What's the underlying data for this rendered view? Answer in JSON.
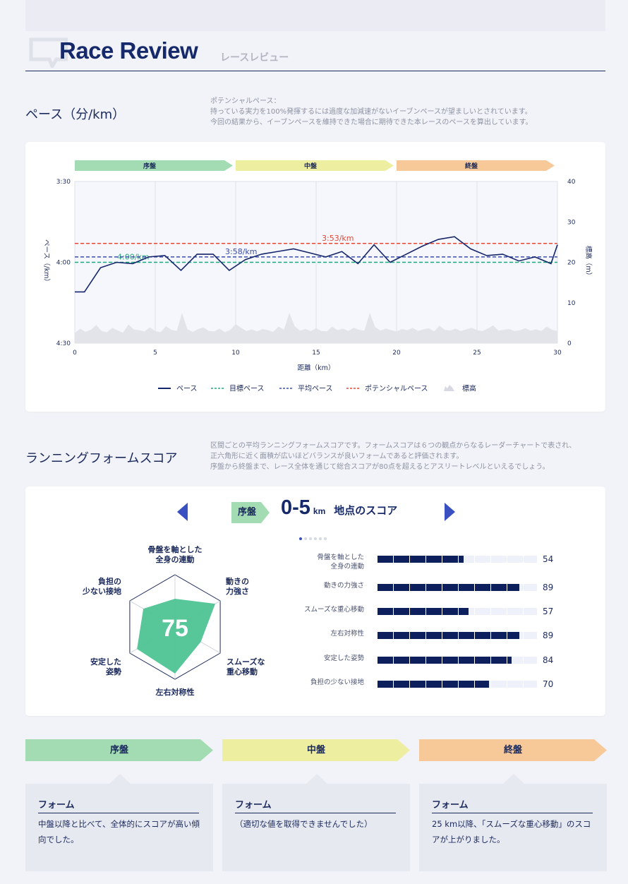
{
  "header": {
    "title": "Race Review",
    "subtitle": "レースレビュー",
    "icon": "speech-bubble-icon"
  },
  "pace_section": {
    "title": "ペース（分/km）",
    "desc": [
      "ポテンシャルペース：",
      "持っている実力を100%発揮するには過度な加減速がないイーブンペースが望ましいとされています。",
      "今回の結果から、イーブンペースを維持できた場合に期待できた本レースのペースを算出しています。"
    ]
  },
  "chart_data": {
    "type": "line",
    "x_label": "距離（km）",
    "y_label": "ペース（/km）",
    "y2_label": "標高（m）",
    "x_range": [
      0,
      30
    ],
    "x_ticks": [
      "0",
      "5",
      "10",
      "15",
      "20",
      "25",
      "30"
    ],
    "y_range_sec": [
      210,
      270
    ],
    "y_ticks": [
      "3:30",
      "4:00",
      "4:30"
    ],
    "y2_range": [
      0,
      40
    ],
    "y2_ticks": [
      "0",
      "10",
      "20",
      "30",
      "40"
    ],
    "phases": [
      {
        "label": "序盤",
        "from": 0,
        "to": 10,
        "color": "#a3dcb2"
      },
      {
        "label": "中盤",
        "from": 10,
        "to": 20,
        "color": "#eeeea0"
      },
      {
        "label": "終盤",
        "from": 20,
        "to": 30,
        "color": "#f7c898"
      }
    ],
    "reference_lines": [
      {
        "name": "目標ペース",
        "value_sec": 240,
        "label": "4:00/km",
        "color": "#23a879"
      },
      {
        "name": "平均ペース",
        "value_sec": 238,
        "label": "3:58/km",
        "color": "#3d4fa8"
      },
      {
        "name": "ポテンシャルペース",
        "value_sec": 233,
        "label": "3:53/km",
        "color": "#e24a36"
      }
    ],
    "series": [
      {
        "name": "ペース",
        "color": "#16266b",
        "x": [
          0,
          0.6,
          1.6,
          2.6,
          3.6,
          4.6,
          5.6,
          6.6,
          7.6,
          8.6,
          9.6,
          10.6,
          11.6,
          12.6,
          13.6,
          14.6,
          15.6,
          16.6,
          17.6,
          18.6,
          19.6,
          20.6,
          21.6,
          22.6,
          23.6,
          24.6,
          25.6,
          26.6,
          27.6,
          28.6,
          29.6,
          30
        ],
        "y_sec": [
          251,
          251,
          242,
          240,
          240.5,
          238,
          237.5,
          243,
          237,
          237,
          243,
          239,
          237,
          236,
          235,
          236.5,
          238,
          236,
          240.5,
          233.5,
          240,
          237,
          234,
          231.5,
          230.5,
          235,
          237.5,
          237,
          239.5,
          238,
          240.5,
          233.5
        ]
      }
    ],
    "elevation": {
      "name": "標高",
      "color": "#e2e4ea",
      "values": [
        2.5,
        3.6,
        2.8,
        3.3,
        4.5,
        3.0,
        2.7,
        3.8,
        3.1,
        2.6,
        4.6,
        3.4,
        3.2,
        2.9,
        3.9,
        3.0,
        2.7,
        4.2,
        3.3,
        3.0,
        7.5,
        3.4,
        2.8,
        3.5,
        3.9,
        3.0,
        2.9,
        3.6,
        2.7,
        3.3,
        4.7,
        3.8,
        3.0,
        3.4,
        2.9,
        3.5,
        3.2,
        2.8,
        4.1,
        3.3,
        7.5,
        4.2,
        3.1,
        3.5,
        3.0,
        3.7,
        3.0,
        2.9,
        4.1,
        3.2,
        3.6,
        3.0,
        3.8,
        3.3,
        3.1,
        7.5,
        4.0,
        3.1,
        3.6,
        3.2,
        2.9,
        3.5,
        3.2,
        3.8,
        3.0,
        3.4,
        3.7,
        2.9,
        4.3,
        3.3,
        3.1,
        3.6,
        3.0,
        3.4,
        3.8,
        3.2,
        3.0,
        3.6,
        4.4,
        3.1,
        3.3,
        3.5,
        3.0,
        3.2,
        3.7,
        3.1,
        3.4,
        3.0,
        4.1,
        3.3,
        3.0
      ]
    },
    "legend": [
      "ペース",
      "目標ペース",
      "平均ペース",
      "ポテンシャルペース",
      "標高"
    ]
  },
  "form_section": {
    "title": "ランニングフォームスコア",
    "desc": [
      "区間ごとの平均ランニングフォームスコアです。フォームスコアは６つの観点からなるレーダーチャートで表され、",
      "正六角形に近く面積が広いほどバランスが良いフォームであると評価されます。",
      "序盤から終盤まで、レース全体を通じて総合スコアが80点を超えるとアスリートレベルといえるでしょう。"
    ]
  },
  "score_card": {
    "phase": "序盤",
    "range": "0-5",
    "unit": "km",
    "label": "地点のスコア",
    "total": "75",
    "radar_labels": [
      [
        "骨盤を軸とした",
        "全身の連動"
      ],
      [
        "動きの",
        "力強さ"
      ],
      [
        "スムーズな",
        "重心移動"
      ],
      [
        "左右対称性"
      ],
      [
        "安定した",
        "姿勢"
      ],
      [
        "負担の",
        "少ない接地"
      ]
    ],
    "metrics": [
      {
        "name": [
          "骨盤を軸とした",
          "全身の連動"
        ],
        "value": 54
      },
      {
        "name": [
          "動きの力強さ"
        ],
        "value": 89
      },
      {
        "name": [
          "スムーズな重心移動"
        ],
        "value": 57
      },
      {
        "name": [
          "左右対称性"
        ],
        "value": 89
      },
      {
        "name": [
          "安定した姿勢"
        ],
        "value": 84
      },
      {
        "name": [
          "負担の少ない接地"
        ],
        "value": 70
      }
    ],
    "radar_fill": "#4ec394",
    "bar_color": "#0e1f5e"
  },
  "phases": [
    {
      "label": "序盤",
      "title": "フォーム",
      "text": "中盤以降と比べて、全体的にスコアが高い傾向でした。",
      "color": "#a3dcb2"
    },
    {
      "label": "中盤",
      "title": "フォーム",
      "text": "（適切な値を取得できませんでした）",
      "color": "#eeeea0"
    },
    {
      "label": "終盤",
      "title": "フォーム",
      "text": "25 km以降、「スムーズな重心移動」のスコアが上がりました。",
      "color": "#f7c898"
    }
  ]
}
